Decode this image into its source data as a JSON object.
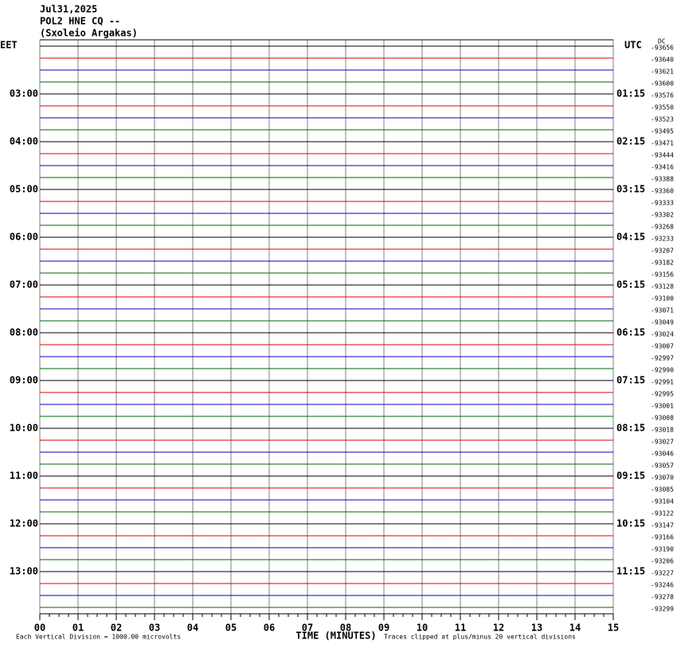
{
  "chart_data": {
    "type": "helicorder",
    "title_lines": [
      "Jul31,2025",
      "POL2 HNE CQ --",
      "(Sxoleio Argakas)"
    ],
    "left_zone": "EET",
    "right_zone": "UTC",
    "dc_label": "DC",
    "x_label": "TIME (MINUTES)",
    "scale_note": "Each Vertical Division = 1000.00 microvolts",
    "clip_note": "Traces clipped at plus/minus 20 vertical divisions",
    "xlim": [
      0,
      15
    ],
    "xticks": [
      {
        "value": 0,
        "label": "00"
      },
      {
        "value": 1,
        "label": "01"
      },
      {
        "value": 2,
        "label": "02"
      },
      {
        "value": 3,
        "label": "03"
      },
      {
        "value": 4,
        "label": "04"
      },
      {
        "value": 5,
        "label": "05"
      },
      {
        "value": 6,
        "label": "06"
      },
      {
        "value": 7,
        "label": "07"
      },
      {
        "value": 8,
        "label": "08"
      },
      {
        "value": 9,
        "label": "09"
      },
      {
        "value": 10,
        "label": "10"
      },
      {
        "value": 11,
        "label": "11"
      },
      {
        "value": 12,
        "label": "12"
      },
      {
        "value": 13,
        "label": "13"
      },
      {
        "value": 14,
        "label": "14"
      },
      {
        "value": 15,
        "label": "15"
      }
    ],
    "colors": [
      "#000000",
      "#e00000",
      "#0000c0",
      "#006400"
    ],
    "grid_color": "#808080",
    "local_times": [
      null,
      null,
      null,
      null,
      "03:00",
      null,
      null,
      null,
      "04:00",
      null,
      null,
      null,
      "05:00",
      null,
      null,
      null,
      "06:00",
      null,
      null,
      null,
      "07:00",
      null,
      null,
      null,
      "08:00",
      null,
      null,
      null,
      "09:00",
      null,
      null,
      null,
      "10:00",
      null,
      null,
      null,
      "11:00",
      null,
      null,
      null,
      "12:00",
      null,
      null,
      null,
      "13:00",
      null,
      null,
      null
    ],
    "utc_times": [
      null,
      null,
      null,
      null,
      "01:15",
      null,
      null,
      null,
      "02:15",
      null,
      null,
      null,
      "03:15",
      null,
      null,
      null,
      "04:15",
      null,
      null,
      null,
      "05:15",
      null,
      null,
      null,
      "06:15",
      null,
      null,
      null,
      "07:15",
      null,
      null,
      null,
      "08:15",
      null,
      null,
      null,
      "09:15",
      null,
      null,
      null,
      "10:15",
      null,
      null,
      null,
      "11:15",
      null,
      null,
      null
    ],
    "dc_offsets": [
      -93656,
      -93640,
      -93621,
      -93600,
      -93576,
      -93550,
      -93523,
      -93495,
      -93471,
      -93444,
      -93416,
      -93388,
      -93360,
      -93333,
      -93302,
      -93268,
      -93233,
      -93207,
      -93182,
      -93156,
      -93128,
      -93100,
      -93071,
      -93049,
      -93024,
      -93007,
      -92997,
      -92990,
      -92991,
      -92995,
      -93001,
      -93008,
      -93018,
      -93027,
      -93046,
      -93057,
      -93070,
      -93085,
      -93104,
      -93122,
      -93147,
      -93166,
      -93190,
      -93206,
      -93227,
      -93246,
      -93278,
      -93299
    ]
  }
}
